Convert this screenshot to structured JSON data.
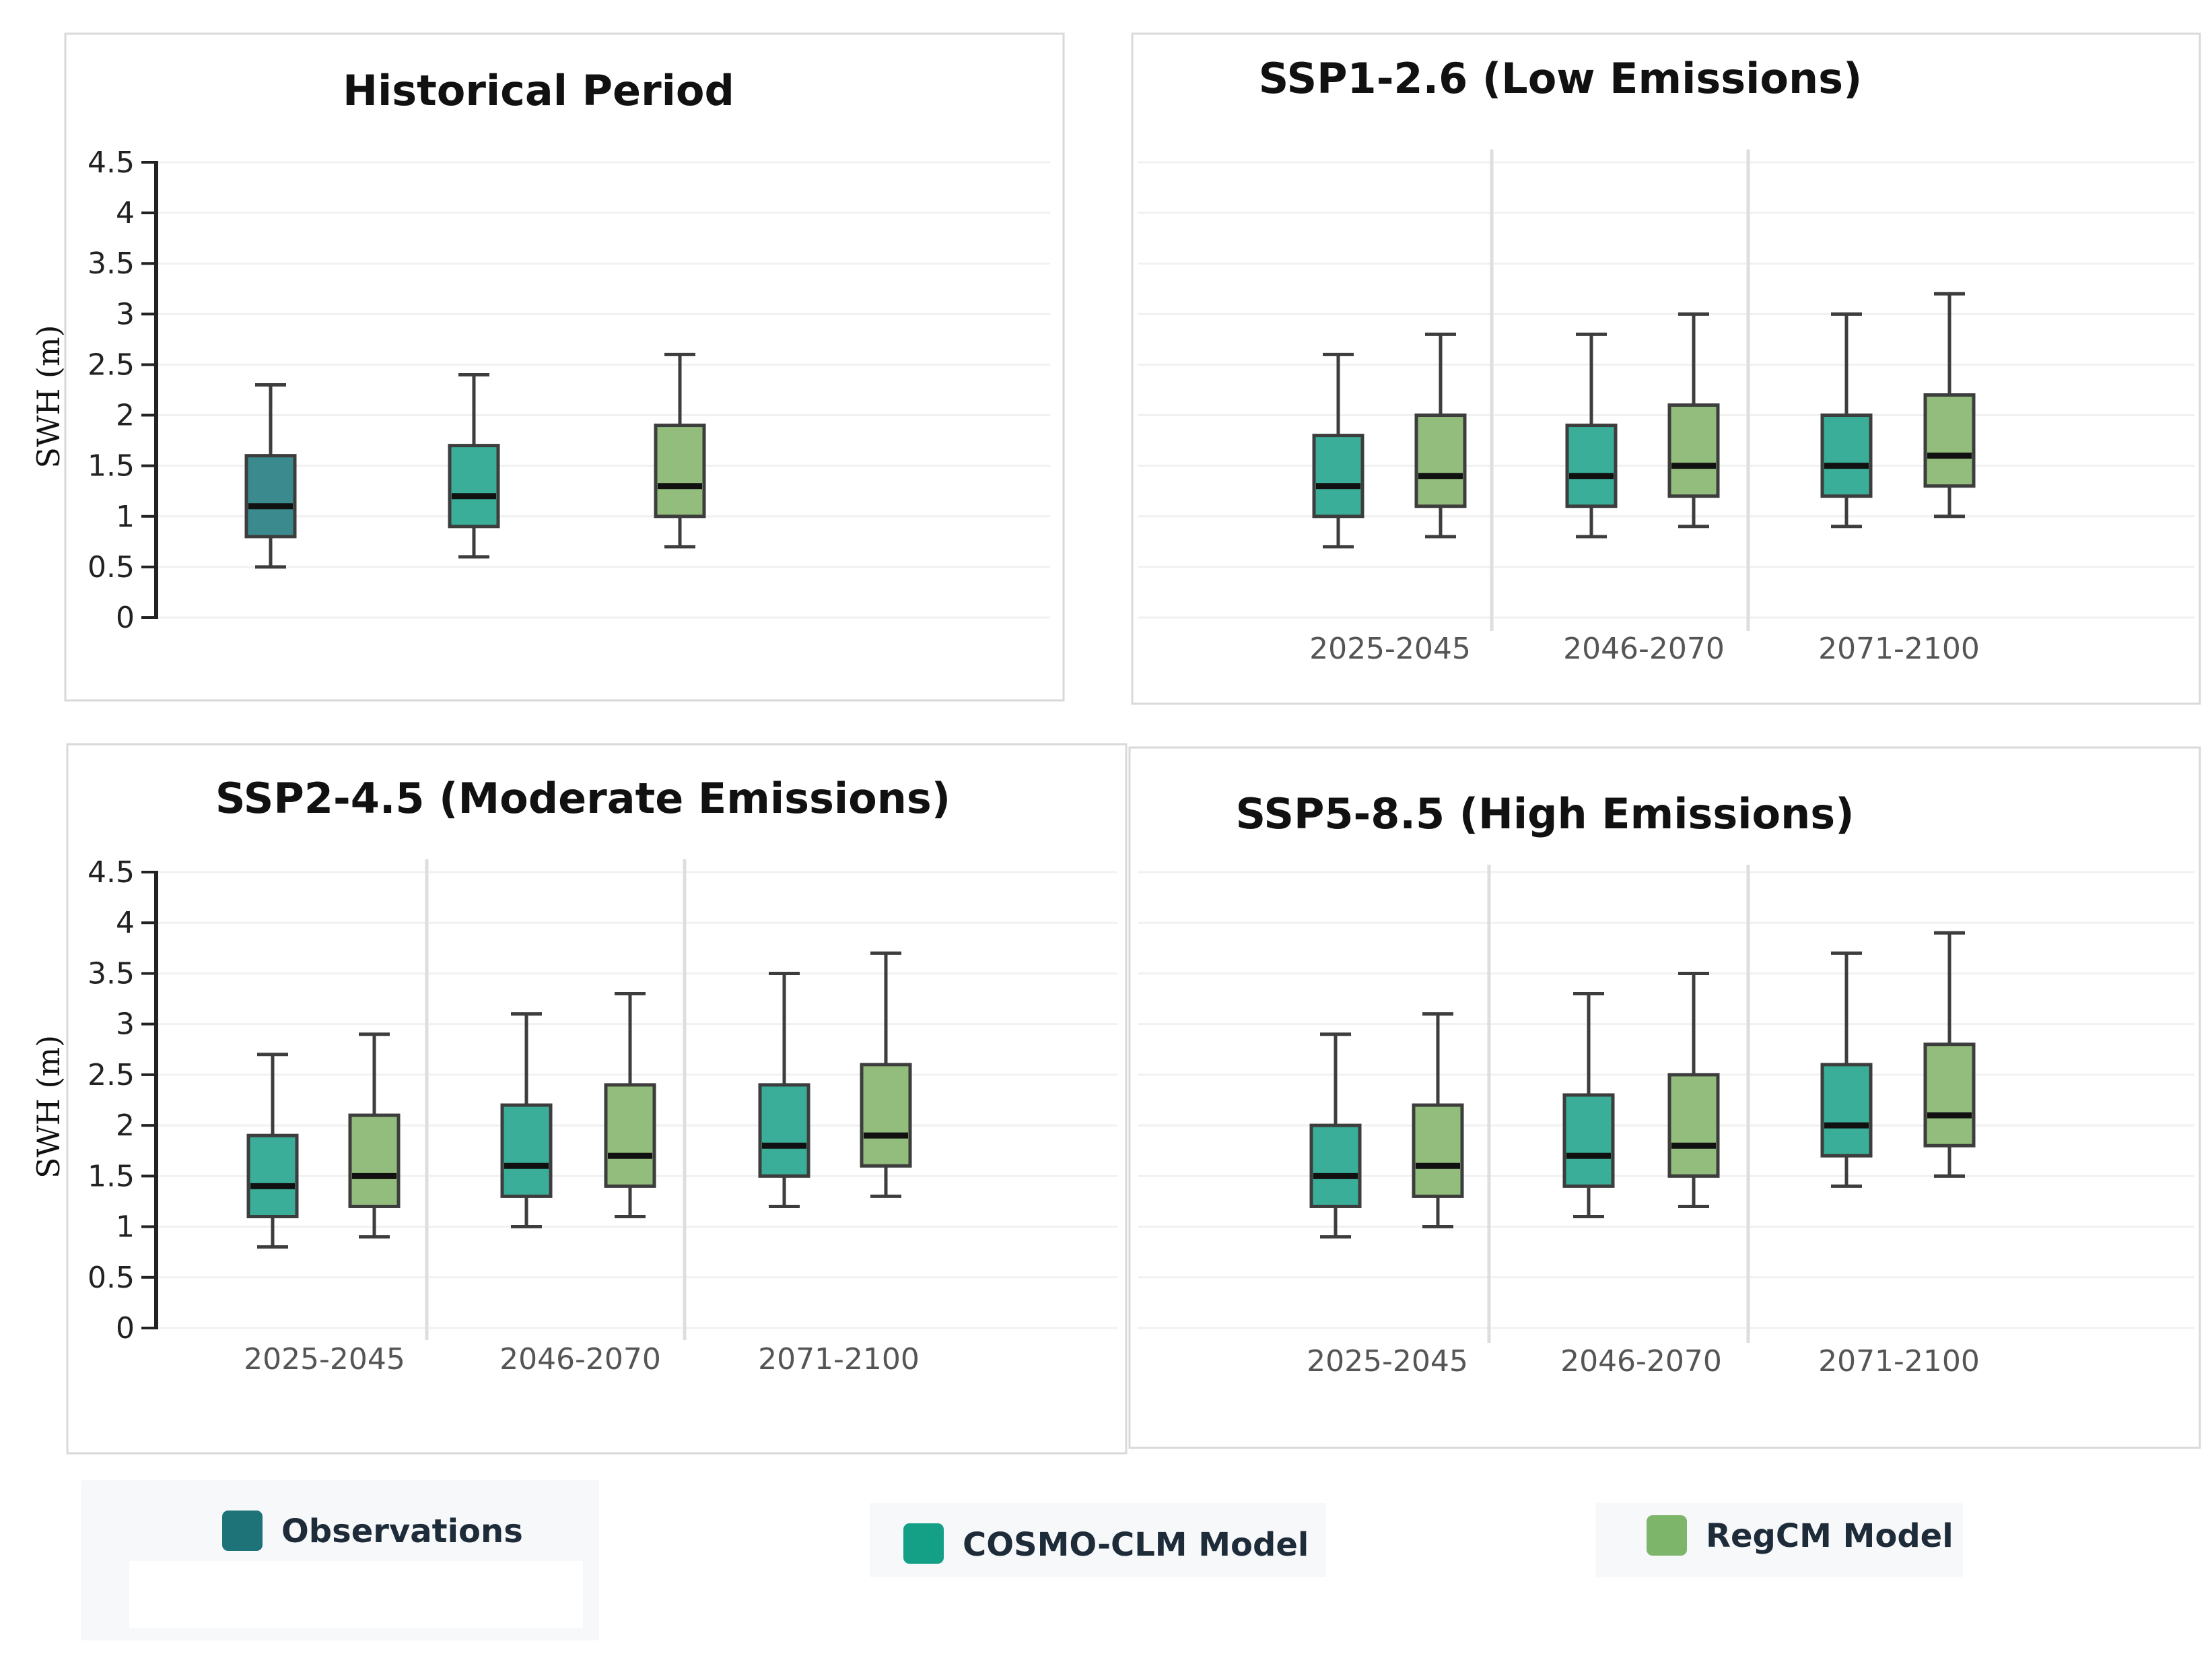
{
  "chart_data": [
    {
      "type": "box",
      "title": "Historical Period",
      "ylabel": "SWH (m)",
      "ylim": [
        0,
        4.5
      ],
      "yticks": [
        "0",
        "0.5",
        "1",
        "1.5",
        "2",
        "2.5",
        "3",
        "3.5",
        "4",
        "4.5"
      ],
      "categories": [],
      "boxes": [
        {
          "series": "Observations",
          "min": 0.5,
          "q1": 0.8,
          "median": 1.1,
          "q3": 1.6,
          "max": 2.3
        },
        {
          "series": "COSMO-CLM Model",
          "min": 0.6,
          "q1": 0.9,
          "median": 1.2,
          "q3": 1.7,
          "max": 2.4
        },
        {
          "series": "RegCM Model",
          "min": 0.7,
          "q1": 1.0,
          "median": 1.3,
          "q3": 1.9,
          "max": 2.6
        }
      ]
    },
    {
      "type": "box",
      "title": "SSP1-2.6 (Low Emissions)",
      "ylabel": "",
      "ylim": [
        0,
        4.5
      ],
      "yticks": [],
      "categories": [
        "2025-2045",
        "2046-2070",
        "2071-2100"
      ],
      "boxes": [
        {
          "category": "2025-2045",
          "series": "COSMO-CLM Model",
          "min": 0.7,
          "q1": 1.0,
          "median": 1.3,
          "q3": 1.8,
          "max": 2.6
        },
        {
          "category": "2025-2045",
          "series": "RegCM Model",
          "min": 0.8,
          "q1": 1.1,
          "median": 1.4,
          "q3": 2.0,
          "max": 2.8
        },
        {
          "category": "2046-2070",
          "series": "COSMO-CLM Model",
          "min": 0.8,
          "q1": 1.1,
          "median": 1.4,
          "q3": 1.9,
          "max": 2.8
        },
        {
          "category": "2046-2070",
          "series": "RegCM Model",
          "min": 0.9,
          "q1": 1.2,
          "median": 1.5,
          "q3": 2.1,
          "max": 3.0
        },
        {
          "category": "2071-2100",
          "series": "COSMO-CLM Model",
          "min": 0.9,
          "q1": 1.2,
          "median": 1.5,
          "q3": 2.0,
          "max": 3.0
        },
        {
          "category": "2071-2100",
          "series": "RegCM Model",
          "min": 1.0,
          "q1": 1.3,
          "median": 1.6,
          "q3": 2.2,
          "max": 3.2
        }
      ]
    },
    {
      "type": "box",
      "title": "SSP2-4.5 (Moderate Emissions)",
      "ylabel": "SWH (m)",
      "ylim": [
        0,
        4.5
      ],
      "yticks": [
        "0",
        "0.5",
        "1",
        "1.5",
        "2",
        "2.5",
        "3",
        "3.5",
        "4",
        "4.5"
      ],
      "categories": [
        "2025-2045",
        "2046-2070",
        "2071-2100"
      ],
      "boxes": [
        {
          "category": "2025-2045",
          "series": "COSMO-CLM Model",
          "min": 0.8,
          "q1": 1.1,
          "median": 1.4,
          "q3": 1.9,
          "max": 2.7
        },
        {
          "category": "2025-2045",
          "series": "RegCM Model",
          "min": 0.9,
          "q1": 1.2,
          "median": 1.5,
          "q3": 2.1,
          "max": 2.9
        },
        {
          "category": "2046-2070",
          "series": "COSMO-CLM Model",
          "min": 1.0,
          "q1": 1.3,
          "median": 1.6,
          "q3": 2.2,
          "max": 3.1
        },
        {
          "category": "2046-2070",
          "series": "RegCM Model",
          "min": 1.1,
          "q1": 1.4,
          "median": 1.7,
          "q3": 2.4,
          "max": 3.3
        },
        {
          "category": "2071-2100",
          "series": "COSMO-CLM Model",
          "min": 1.2,
          "q1": 1.5,
          "median": 1.8,
          "q3": 2.4,
          "max": 3.5
        },
        {
          "category": "2071-2100",
          "series": "RegCM Model",
          "min": 1.3,
          "q1": 1.6,
          "median": 1.9,
          "q3": 2.6,
          "max": 3.7
        }
      ]
    },
    {
      "type": "box",
      "title": "SSP5-8.5 (High Emissions)",
      "ylabel": "",
      "ylim": [
        0,
        4.5
      ],
      "yticks": [],
      "categories": [
        "2025-2045",
        "2046-2070",
        "2071-2100"
      ],
      "boxes": [
        {
          "category": "2025-2045",
          "series": "COSMO-CLM Model",
          "min": 0.9,
          "q1": 1.2,
          "median": 1.5,
          "q3": 2.0,
          "max": 2.9
        },
        {
          "category": "2025-2045",
          "series": "RegCM Model",
          "min": 1.0,
          "q1": 1.3,
          "median": 1.6,
          "q3": 2.2,
          "max": 3.1
        },
        {
          "category": "2046-2070",
          "series": "COSMO-CLM Model",
          "min": 1.1,
          "q1": 1.4,
          "median": 1.7,
          "q3": 2.3,
          "max": 3.3
        },
        {
          "category": "2046-2070",
          "series": "RegCM Model",
          "min": 1.2,
          "q1": 1.5,
          "median": 1.8,
          "q3": 2.5,
          "max": 3.5
        },
        {
          "category": "2071-2100",
          "series": "COSMO-CLM Model",
          "min": 1.4,
          "q1": 1.7,
          "median": 2.0,
          "q3": 2.6,
          "max": 3.7
        },
        {
          "category": "2071-2100",
          "series": "RegCM Model",
          "min": 1.5,
          "q1": 1.8,
          "median": 2.1,
          "q3": 2.8,
          "max": 3.9
        }
      ]
    }
  ],
  "legend": {
    "placement": "bottom",
    "items": [
      {
        "label": "Observations",
        "color": "#1e7378"
      },
      {
        "label": "COSMO-CLM Model",
        "color": "#14a086"
      },
      {
        "label": "RegCM Model",
        "color": "#7db56a"
      }
    ]
  },
  "colors": {
    "Observations": "#3a8a8e",
    "COSMO-CLM Model": "#3aae98",
    "RegCM Model": "#93bd7c",
    "box_outline": "#3d3d3d",
    "median": "#111111"
  }
}
